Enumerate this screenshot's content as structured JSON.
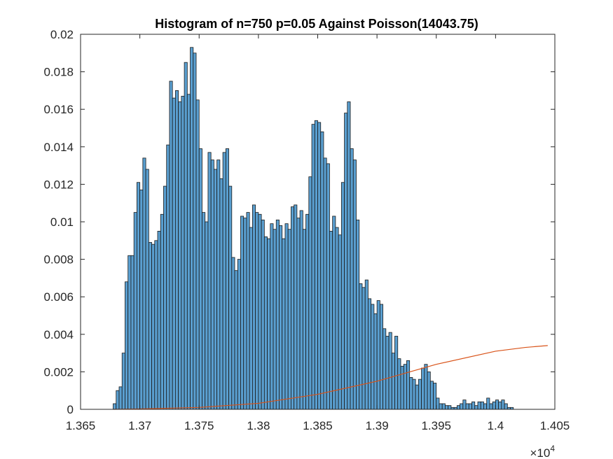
{
  "chart_data": {
    "type": "bar",
    "title": "Histogram of n=750 p=0.05 Against Poisson(14043.75)",
    "xlabel": "",
    "ylabel": "",
    "xlim": [
      13650,
      14050
    ],
    "ylim": [
      0,
      0.02
    ],
    "x_ticks": [
      13650,
      13700,
      13750,
      13800,
      13850,
      13900,
      13950,
      14000,
      14050
    ],
    "x_tick_labels": [
      "1.365",
      "1.37",
      "1.375",
      "1.38",
      "1.385",
      "1.39",
      "1.395",
      "1.4",
      "1.405"
    ],
    "x_exponent_multiplier": "×",
    "x_exponent_base": "10",
    "x_exponent_power": "4",
    "y_ticks": [
      0,
      0.002,
      0.004,
      0.006,
      0.008,
      0.01,
      0.012,
      0.014,
      0.016,
      0.018,
      0.02
    ],
    "y_tick_labels": [
      "0",
      "0.002",
      "0.004",
      "0.006",
      "0.008",
      "0.01",
      "0.012",
      "0.014",
      "0.016",
      "0.018",
      "0.02"
    ],
    "grid": false,
    "bin_start": 13677.5,
    "bin_width": 2.5,
    "series": [
      {
        "values": [
          0.0003,
          0.001,
          0.0012,
          0.003,
          0.0068,
          0.0082,
          0.0082,
          0.0105,
          0.0121,
          0.0117,
          0.0134,
          0.0128,
          0.0089,
          0.0088,
          0.009,
          0.0095,
          0.0104,
          0.0119,
          0.0141,
          0.0175,
          0.0166,
          0.017,
          0.0164,
          0.0167,
          0.0185,
          0.0168,
          0.0193,
          0.019,
          0.0165,
          0.0139,
          0.0105,
          0.01,
          0.0137,
          0.0133,
          0.0128,
          0.0133,
          0.0123,
          0.0137,
          0.0139,
          0.0119,
          0.0081,
          0.0074,
          0.008,
          0.0103,
          0.0102,
          0.0105,
          0.0097,
          0.0109,
          0.0105,
          0.0104,
          0.0101,
          0.0092,
          0.0091,
          0.0099,
          0.0096,
          0.0101,
          0.0098,
          0.0091,
          0.0099,
          0.0096,
          0.0108,
          0.0109,
          0.0102,
          0.0106,
          0.0096,
          0.0104,
          0.0124,
          0.0152,
          0.0154,
          0.0153,
          0.0148,
          0.0134,
          0.0131,
          0.0095,
          0.0103,
          0.0097,
          0.0093,
          0.0121,
          0.0158,
          0.0164,
          0.0139,
          0.0133,
          0.0101,
          0.0067,
          0.0065,
          0.0069,
          0.0059,
          0.0056,
          0.0051,
          0.0058,
          0.0056,
          0.0043,
          0.0039,
          0.0041,
          0.003,
          0.0039,
          0.0027,
          0.0023,
          0.0024,
          0.0026,
          0.0017,
          0.0016,
          0.0013,
          0.0016,
          0.0022,
          0.0024,
          0.002,
          0.0015,
          0.0014,
          0.0006,
          0.0003,
          0.0003,
          0.0002,
          0.0002,
          0.0001,
          0.0001,
          0.0002,
          0.0003,
          0.0005,
          0.0003,
          0.0003,
          0.0004,
          0.0002,
          0.0004,
          0.0004,
          0.0003,
          0.0006,
          0.0003,
          0.0004,
          0.0005,
          0.0004,
          0.0005,
          0.0003,
          0.0001,
          0.0001
        ]
      },
      {
        "x": [
          13677.5,
          13700,
          13750,
          13800,
          13850,
          13900,
          13950,
          14000,
          14025,
          14044
        ],
        "values": [
          0.0,
          2e-05,
          0.0001,
          0.00032,
          0.0008,
          0.0015,
          0.0024,
          0.0031,
          0.0033,
          0.0034
        ]
      }
    ],
    "colors": {
      "bar_fill": "#5a9fd0",
      "bar_edge": "#1a1a1a",
      "curve": "#d95319",
      "axes": "#262626"
    }
  }
}
